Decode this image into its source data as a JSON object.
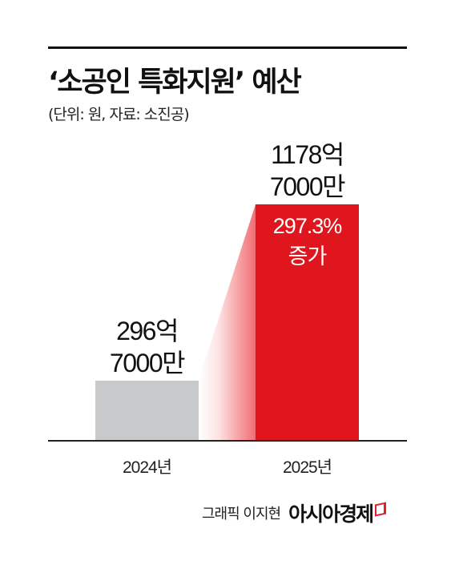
{
  "title": "‘소공인 특화지원’ 예산",
  "subtitle": "(단위: 원, 자료: 소진공)",
  "credit": {
    "text": "그래픽 이지현",
    "brand": "아시아경제",
    "brand_icon": "brand-mark-icon",
    "brand_color": "#e31d2b"
  },
  "chart_data": {
    "type": "bar",
    "title": "‘소공인 특화지원’ 예산",
    "unit": "(단위: 원, 자료: 소진공)",
    "categories": [
      "2024년",
      "2025년"
    ],
    "values": [
      29670000000,
      117870000000
    ],
    "value_labels": [
      [
        "296억",
        "7000만"
      ],
      [
        "1178억",
        "7000만"
      ]
    ],
    "annotation": {
      "category": "2025년",
      "lines": [
        "297.3%",
        "증가"
      ]
    },
    "colors": {
      "2024년": "#c8c9cb",
      "2025년": "#e0161e",
      "baseline": "#222222"
    },
    "xlabel": "",
    "ylabel": "",
    "grid": false,
    "legend": "none"
  }
}
